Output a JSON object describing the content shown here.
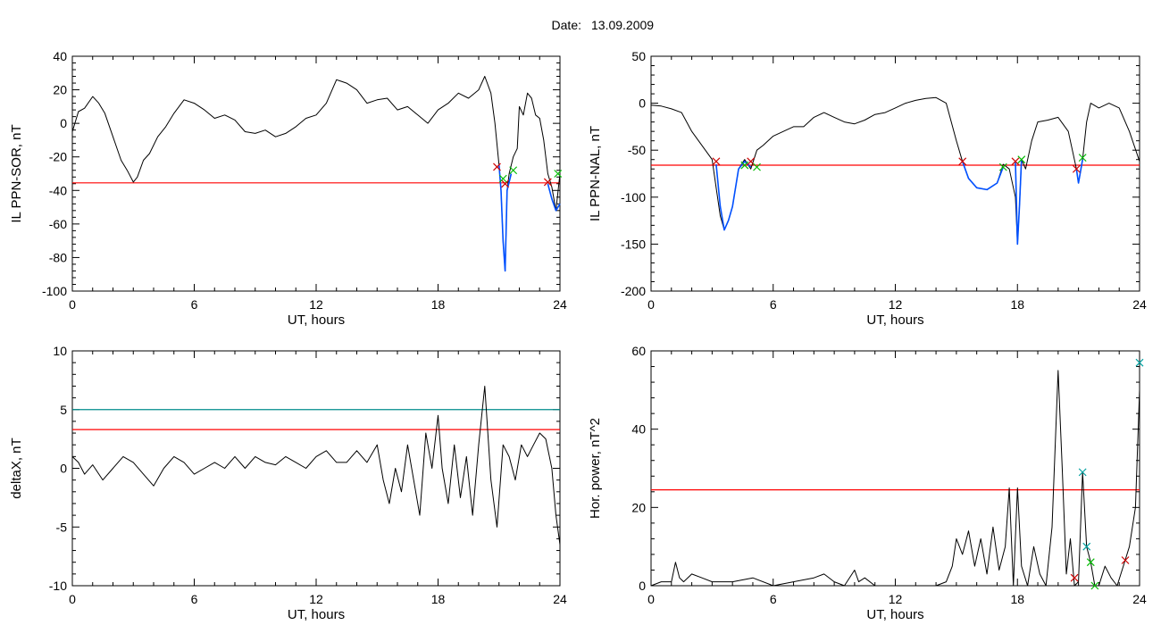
{
  "figure": {
    "title_prefix": "Date:",
    "date": "13.09.2009"
  },
  "chart_data": [
    {
      "type": "line",
      "ylabel": "IL PPN-SOR, nT",
      "xlabel": "UT, hours",
      "xlim": [
        0,
        24
      ],
      "ylim": [
        -100,
        40
      ],
      "xticks": [
        0,
        6,
        12,
        18,
        24
      ],
      "xtick_labels": [
        "0",
        "6",
        "12",
        "18",
        "24"
      ],
      "yticks": [
        -100,
        -80,
        -60,
        -40,
        -20,
        0,
        20,
        40
      ],
      "ytick_labels": [
        "-100",
        "-80",
        "-60",
        "-40",
        "-20",
        "0",
        "20",
        "40"
      ],
      "series": [
        {
          "role": "index",
          "color": "#000000",
          "x": [
            0,
            0.3,
            0.6,
            1.0,
            1.3,
            1.6,
            2.0,
            2.4,
            2.7,
            3.0,
            3.2,
            3.5,
            3.8,
            4.2,
            4.6,
            5.0,
            5.5,
            6.0,
            6.5,
            7.0,
            7.5,
            8.0,
            8.5,
            9.0,
            9.5,
            10.0,
            10.5,
            11.0,
            11.5,
            12.0,
            12.5,
            13.0,
            13.5,
            14.0,
            14.5,
            15.0,
            15.5,
            16.0,
            16.5,
            17.0,
            17.5,
            18.0,
            18.5,
            19.0,
            19.5,
            20.0,
            20.3,
            20.6,
            20.8,
            21.0,
            21.1,
            21.2,
            21.3,
            21.4,
            21.5,
            21.7,
            21.9,
            22.0,
            22.2,
            22.4,
            22.6,
            22.8,
            23.0,
            23.2,
            23.4,
            23.6,
            23.8,
            24.0
          ],
          "y": [
            -5,
            7,
            9,
            16,
            12,
            6,
            -8,
            -22,
            -28,
            -35,
            -32,
            -22,
            -18,
            -8,
            -2,
            6,
            14,
            12,
            8,
            3,
            5,
            2,
            -5,
            -6,
            -4,
            -8,
            -6,
            -2,
            3,
            5,
            12,
            26,
            24,
            20,
            12,
            14,
            15,
            8,
            10,
            5,
            0,
            8,
            12,
            18,
            15,
            20,
            28,
            18,
            0,
            -25,
            -40,
            -70,
            -88,
            -40,
            -30,
            -20,
            -15,
            10,
            5,
            18,
            15,
            5,
            3,
            -10,
            -30,
            -38,
            -52,
            -30
          ]
        },
        {
          "role": "highlight",
          "color": "#0050ff",
          "x": [
            21.0,
            21.1,
            21.2,
            21.3,
            21.4,
            21.5,
            21.6
          ],
          "y": [
            -25,
            -40,
            -70,
            -88,
            -40,
            -35,
            -30
          ]
        },
        {
          "role": "highlight",
          "color": "#0050ff",
          "x": [
            23.4,
            23.6,
            23.8,
            24.0
          ],
          "y": [
            -36,
            -45,
            -52,
            -48
          ]
        }
      ],
      "thresholds": [
        {
          "value": -35.5,
          "color": "#ff0000"
        }
      ],
      "markers": [
        {
          "x": 20.9,
          "y": -26,
          "color": "#cc0000"
        },
        {
          "x": 21.3,
          "y": -36,
          "color": "#cc0000"
        },
        {
          "x": 21.2,
          "y": -33,
          "color": "#00bb00"
        },
        {
          "x": 21.7,
          "y": -28,
          "color": "#00bb00"
        },
        {
          "x": 23.4,
          "y": -35,
          "color": "#cc0000"
        },
        {
          "x": 23.9,
          "y": -30,
          "color": "#00bb00"
        }
      ]
    },
    {
      "type": "line",
      "ylabel": "IL PPN-NAL, nT",
      "xlabel": "UT, hours",
      "xlim": [
        0,
        24
      ],
      "ylim": [
        -200,
        50
      ],
      "xticks": [
        0,
        6,
        12,
        18,
        24
      ],
      "xtick_labels": [
        "0",
        "6",
        "12",
        "18",
        "24"
      ],
      "yticks": [
        -200,
        -150,
        -100,
        -50,
        0,
        50
      ],
      "ytick_labels": [
        "-200",
        "-150",
        "-100",
        "-50",
        "0",
        "50"
      ],
      "series": [
        {
          "role": "index",
          "color": "#000000",
          "x": [
            0,
            0.5,
            1.0,
            1.5,
            2.0,
            2.5,
            3.0,
            3.2,
            3.4,
            3.6,
            3.8,
            4.0,
            4.3,
            4.6,
            4.9,
            5.2,
            5.5,
            6.0,
            6.5,
            7.0,
            7.5,
            8.0,
            8.5,
            9.0,
            9.5,
            10.0,
            10.5,
            11.0,
            11.5,
            12.0,
            12.5,
            13.0,
            13.5,
            14.0,
            14.5,
            15.0,
            15.3,
            15.6,
            16.0,
            16.5,
            17.0,
            17.3,
            17.6,
            17.9,
            18.0,
            18.1,
            18.2,
            18.4,
            18.7,
            19.0,
            19.5,
            20.0,
            20.5,
            20.9,
            21.0,
            21.2,
            21.4,
            21.6,
            22.0,
            22.5,
            23.0,
            23.5,
            24.0
          ],
          "y": [
            -2,
            -3,
            -6,
            -10,
            -30,
            -45,
            -60,
            -90,
            -120,
            -135,
            -125,
            -110,
            -70,
            -60,
            -70,
            -50,
            -45,
            -35,
            -30,
            -25,
            -25,
            -15,
            -10,
            -15,
            -20,
            -22,
            -18,
            -12,
            -10,
            -5,
            0,
            3,
            5,
            6,
            0,
            -40,
            -62,
            -80,
            -90,
            -92,
            -85,
            -65,
            -70,
            -100,
            -150,
            -110,
            -60,
            -70,
            -40,
            -20,
            -18,
            -15,
            -30,
            -70,
            -85,
            -60,
            -20,
            0,
            -5,
            0,
            -5,
            -30,
            -62
          ]
        },
        {
          "role": "highlight",
          "color": "#0050ff",
          "x": [
            3.2,
            3.4,
            3.6,
            3.8,
            4.0,
            4.3,
            4.6,
            4.9
          ],
          "y": [
            -65,
            -110,
            -135,
            -125,
            -110,
            -70,
            -62,
            -68
          ]
        },
        {
          "role": "highlight",
          "color": "#0050ff",
          "x": [
            15.3,
            15.6,
            16.0,
            16.5,
            17.0,
            17.3
          ],
          "y": [
            -62,
            -80,
            -90,
            -92,
            -85,
            -68
          ]
        },
        {
          "role": "highlight",
          "color": "#0050ff",
          "x": [
            17.9,
            18.0,
            18.1,
            18.2
          ],
          "y": [
            -62,
            -150,
            -110,
            -60
          ]
        },
        {
          "role": "highlight",
          "color": "#0050ff",
          "x": [
            20.9,
            21.0,
            21.2
          ],
          "y": [
            -70,
            -85,
            -60
          ]
        }
      ],
      "thresholds": [
        {
          "value": -66,
          "color": "#ff0000"
        }
      ],
      "markers": [
        {
          "x": 3.2,
          "y": -62,
          "color": "#cc0000"
        },
        {
          "x": 4.6,
          "y": -66,
          "color": "#00bb00"
        },
        {
          "x": 4.9,
          "y": -62,
          "color": "#cc0000"
        },
        {
          "x": 5.2,
          "y": -68,
          "color": "#00bb00"
        },
        {
          "x": 15.3,
          "y": -62,
          "color": "#cc0000"
        },
        {
          "x": 17.3,
          "y": -68,
          "color": "#00bb00"
        },
        {
          "x": 17.9,
          "y": -62,
          "color": "#cc0000"
        },
        {
          "x": 18.2,
          "y": -60,
          "color": "#00bb00"
        },
        {
          "x": 20.9,
          "y": -70,
          "color": "#cc0000"
        },
        {
          "x": 21.2,
          "y": -58,
          "color": "#00bb00"
        }
      ]
    },
    {
      "type": "line",
      "ylabel": "deltaX, nT",
      "xlabel": "UT, hours",
      "xlim": [
        0,
        24
      ],
      "ylim": [
        -10,
        10
      ],
      "xticks": [
        0,
        6,
        12,
        18,
        24
      ],
      "xtick_labels": [
        "0",
        "6",
        "12",
        "18",
        "24"
      ],
      "yticks": [
        -10,
        -5,
        0,
        5,
        10
      ],
      "ytick_labels": [
        "-10",
        "-5",
        "0",
        "5",
        "10"
      ],
      "series": [
        {
          "role": "index",
          "color": "#000000",
          "x": [
            0,
            0.3,
            0.6,
            1.0,
            1.5,
            2.0,
            2.5,
            3.0,
            3.5,
            4.0,
            4.5,
            5.0,
            5.5,
            6.0,
            6.5,
            7.0,
            7.5,
            8.0,
            8.5,
            9.0,
            9.5,
            10.0,
            10.5,
            11.0,
            11.5,
            12.0,
            12.5,
            13.0,
            13.5,
            14.0,
            14.5,
            15.0,
            15.3,
            15.6,
            15.9,
            16.2,
            16.5,
            16.8,
            17.1,
            17.4,
            17.7,
            18.0,
            18.2,
            18.5,
            18.8,
            19.1,
            19.4,
            19.7,
            20.0,
            20.3,
            20.6,
            20.9,
            21.2,
            21.5,
            21.8,
            22.1,
            22.4,
            22.7,
            23.0,
            23.3,
            23.6,
            23.8,
            24.0
          ],
          "y": [
            1,
            0.5,
            -0.5,
            0.3,
            -1,
            0,
            1,
            0.5,
            -0.5,
            -1.5,
            0,
            1,
            0.5,
            -0.5,
            0,
            0.5,
            0,
            1,
            0,
            1,
            0.5,
            0.3,
            1,
            0.5,
            0,
            1,
            1.5,
            0.5,
            0.5,
            1.5,
            0.5,
            2,
            -1,
            -3,
            0,
            -2,
            2,
            -1,
            -4,
            3,
            0,
            4.5,
            0,
            -3,
            2,
            -2.5,
            1,
            -4,
            2,
            7,
            -1,
            -5,
            2,
            1,
            -1,
            2,
            1,
            2,
            3,
            2.5,
            0,
            -4,
            -6.5
          ]
        }
      ],
      "thresholds": [
        {
          "value": 5,
          "color": "#008c8c"
        },
        {
          "value": 3.3,
          "color": "#ff0000"
        }
      ],
      "markers": []
    },
    {
      "type": "line",
      "ylabel": "Hor. power, nT^2",
      "xlabel": "UT, hours",
      "xlim": [
        0,
        24
      ],
      "ylim": [
        0,
        60
      ],
      "xticks": [
        0,
        6,
        12,
        18,
        24
      ],
      "xtick_labels": [
        "0",
        "6",
        "12",
        "18",
        "24"
      ],
      "yticks": [
        0,
        20,
        40,
        60
      ],
      "ytick_labels": [
        "0",
        "20",
        "40",
        "60"
      ],
      "series": [
        {
          "role": "index",
          "color": "#000000",
          "x": [
            0,
            0.5,
            1.0,
            1.2,
            1.4,
            1.6,
            2.0,
            2.5,
            3.0,
            4.0,
            5.0,
            6.0,
            7.0,
            8.0,
            8.5,
            9.0,
            9.5,
            10.0,
            10.2,
            10.5,
            11.0,
            12.0,
            13.0,
            14.0,
            14.5,
            14.8,
            15.0,
            15.3,
            15.6,
            15.9,
            16.2,
            16.5,
            16.8,
            17.1,
            17.4,
            17.6,
            17.8,
            18.0,
            18.2,
            18.5,
            18.8,
            19.1,
            19.4,
            19.7,
            20.0,
            20.2,
            20.4,
            20.6,
            20.8,
            21.0,
            21.2,
            21.4,
            21.6,
            21.8,
            22.0,
            22.3,
            22.6,
            22.9,
            23.2,
            23.5,
            23.8,
            24.0
          ],
          "y": [
            0,
            1,
            1,
            6,
            2,
            1,
            3,
            2,
            1,
            1,
            2,
            0,
            1,
            2,
            3,
            1,
            0,
            4,
            1,
            2,
            0,
            0,
            0,
            0,
            1,
            5,
            12,
            8,
            14,
            5,
            12,
            3,
            15,
            4,
            10,
            25,
            0,
            25,
            5,
            0,
            10,
            3,
            0,
            15,
            55,
            30,
            3,
            12,
            0,
            1,
            29,
            10,
            6,
            0,
            0,
            5,
            2,
            0,
            5,
            10,
            20,
            50
          ]
        }
      ],
      "thresholds": [
        {
          "value": 24.5,
          "color": "#ff0000"
        }
      ],
      "markers": [
        {
          "x": 20.8,
          "y": 2,
          "color": "#cc0000"
        },
        {
          "x": 21.2,
          "y": 29,
          "color": "#00a0a0"
        },
        {
          "x": 21.4,
          "y": 10,
          "color": "#00a0a0"
        },
        {
          "x": 21.6,
          "y": 6,
          "color": "#00bb00"
        },
        {
          "x": 21.8,
          "y": 0,
          "color": "#00bb00"
        },
        {
          "x": 23.3,
          "y": 6.5,
          "color": "#cc0000"
        },
        {
          "x": 24.0,
          "y": 57,
          "color": "#00a0a0"
        }
      ]
    }
  ]
}
